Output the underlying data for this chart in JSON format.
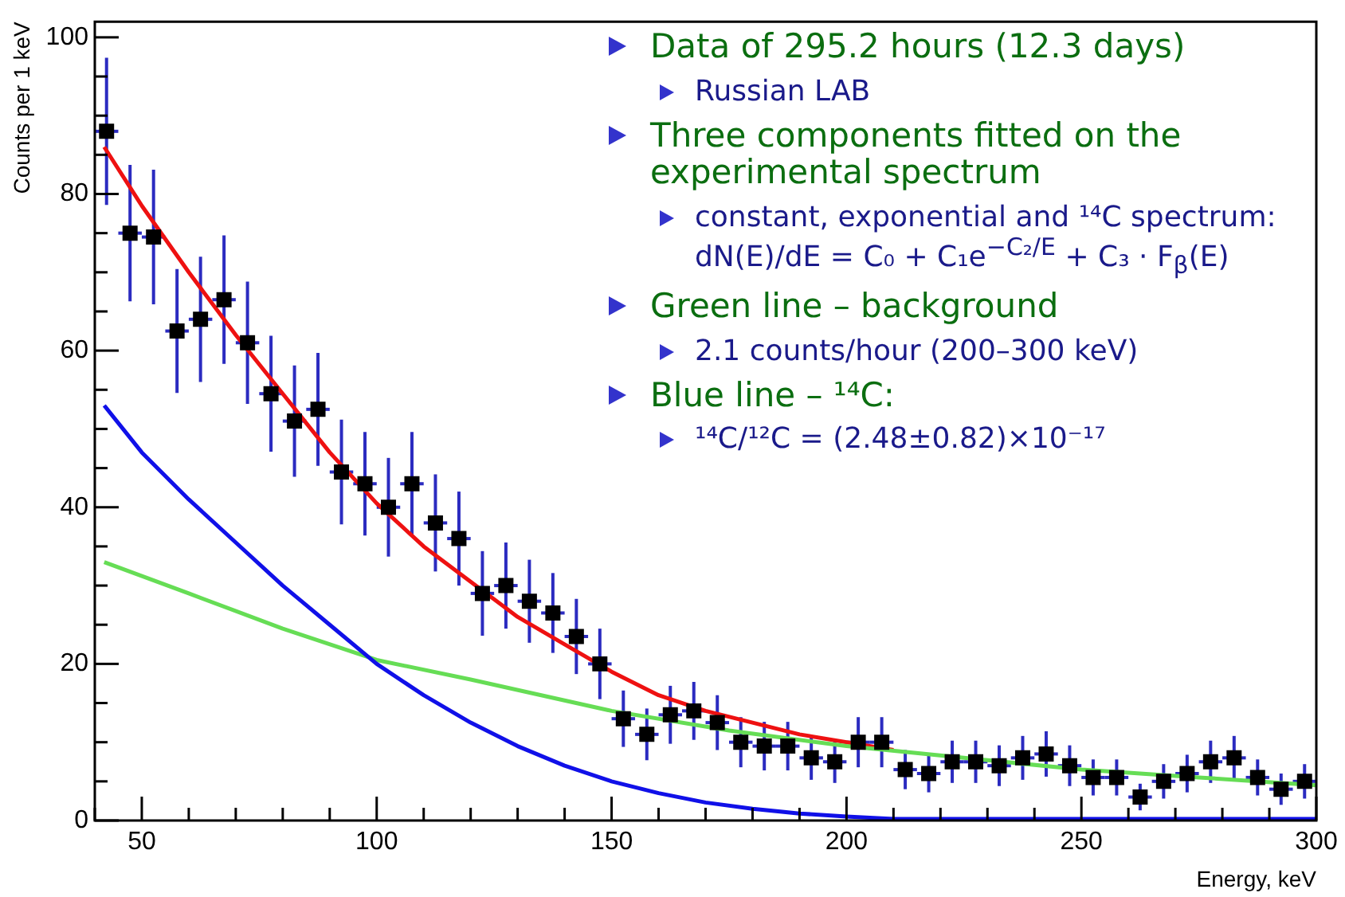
{
  "chart_data": {
    "type": "scatter",
    "xlabel": "Energy, keV",
    "ylabel": "Counts per 1 keV",
    "xlim": [
      40,
      300
    ],
    "ylim": [
      0,
      102
    ],
    "xticks": [
      {
        "value": 40,
        "label": null
      },
      50,
      {
        "value": 60,
        "label": null
      },
      {
        "value": 70,
        "label": null
      },
      {
        "value": 80,
        "label": null
      },
      {
        "value": 90,
        "label": null
      },
      100,
      {
        "value": 110,
        "label": null
      },
      {
        "value": 120,
        "label": null
      },
      {
        "value": 130,
        "label": null
      },
      {
        "value": 140,
        "label": null
      },
      150,
      {
        "value": 160,
        "label": null
      },
      {
        "value": 170,
        "label": null
      },
      {
        "value": 180,
        "label": null
      },
      {
        "value": 190,
        "label": null
      },
      200,
      {
        "value": 210,
        "label": null
      },
      {
        "value": 220,
        "label": null
      },
      {
        "value": 230,
        "label": null
      },
      {
        "value": 240,
        "label": null
      },
      250,
      {
        "value": 260,
        "label": null
      },
      {
        "value": 270,
        "label": null
      },
      {
        "value": 280,
        "label": null
      },
      {
        "value": 290,
        "label": null
      },
      300
    ],
    "yticks": [
      0,
      {
        "value": 5,
        "label": null
      },
      {
        "value": 10,
        "label": null
      },
      {
        "value": 15,
        "label": null
      },
      20,
      {
        "value": 25,
        "label": null
      },
      {
        "value": 30,
        "label": null
      },
      {
        "value": 35,
        "label": null
      },
      40,
      {
        "value": 45,
        "label": null
      },
      {
        "value": 50,
        "label": null
      },
      {
        "value": 55,
        "label": null
      },
      60,
      {
        "value": 65,
        "label": null
      },
      {
        "value": 70,
        "label": null
      },
      {
        "value": 75,
        "label": null
      },
      80,
      {
        "value": 85,
        "label": null
      },
      {
        "value": 90,
        "label": null
      },
      {
        "value": 95,
        "label": null
      },
      100
    ],
    "grid": false,
    "legend": false,
    "series": [
      {
        "type": "line",
        "color": "#1010e8",
        "marker": "none",
        "x": [
          42,
          50,
          60,
          70,
          80,
          90,
          100,
          110,
          120,
          130,
          140,
          150,
          160,
          170,
          180,
          190,
          200,
          210,
          300
        ],
        "values": [
          53,
          47,
          41,
          35.5,
          30,
          25,
          20,
          16,
          12.5,
          9.5,
          7,
          5,
          3.5,
          2.3,
          1.5,
          0.9,
          0.5,
          0.2,
          0.2
        ]
      },
      {
        "type": "line",
        "color": "#66dd55",
        "marker": "none",
        "x": [
          42,
          60,
          80,
          100,
          120,
          150,
          175,
          200,
          225,
          250,
          275,
          300
        ],
        "values": [
          33,
          29,
          24.5,
          20.5,
          18,
          14,
          11.5,
          9.5,
          8,
          6.5,
          5.5,
          4.5
        ]
      },
      {
        "type": "line",
        "color": "#ee1111",
        "marker": "none",
        "x": [
          42,
          50,
          60,
          70,
          80,
          90,
          100,
          110,
          120,
          130,
          140,
          150,
          160,
          170,
          180,
          190,
          200,
          210
        ],
        "values": [
          86,
          78.5,
          70,
          62,
          54.5,
          47,
          40.5,
          35,
          30.5,
          26,
          22.5,
          19,
          16,
          14,
          12.5,
          11,
          10,
          9
        ]
      },
      {
        "type": "scatter",
        "color": "#000000",
        "marker": "square",
        "x": [
          42.5,
          47.5,
          52.5,
          57.5,
          62.5,
          67.5,
          72.5,
          77.5,
          82.5,
          87.5,
          92.5,
          97.5,
          102.5,
          107.5,
          112.5,
          117.5,
          122.5,
          127.5,
          132.5,
          137.5,
          142.5,
          147.5,
          152.5,
          157.5,
          162.5,
          167.5,
          172.5,
          177.5,
          182.5,
          187.5,
          192.5,
          197.5,
          202.5,
          207.5,
          212.5,
          217.5,
          222.5,
          227.5,
          232.5,
          237.5,
          242.5,
          247.5,
          252.5,
          257.5,
          262.5,
          267.5,
          272.5,
          277.5,
          282.5,
          287.5,
          292.5,
          297.5
        ],
        "values": [
          88,
          75,
          74.5,
          62.5,
          64,
          66.5,
          61,
          54.5,
          51,
          52.5,
          44.5,
          43,
          40,
          43,
          38,
          36,
          29,
          30,
          28,
          26.5,
          23.5,
          20,
          13,
          11,
          13.5,
          14,
          12.5,
          10,
          9.5,
          9.5,
          8,
          7.5,
          10,
          10,
          6.5,
          6,
          7.5,
          7.5,
          7,
          8,
          8.5,
          7,
          5.5,
          5.5,
          3,
          5,
          6,
          7.5,
          8,
          5.5,
          4,
          5
        ],
        "errors": [
          9.4,
          8.7,
          8.6,
          7.9,
          8,
          8.2,
          7.8,
          7.4,
          7.1,
          7.2,
          6.7,
          6.6,
          6.3,
          6.6,
          6.2,
          6,
          5.4,
          5.5,
          5.3,
          5.1,
          4.8,
          4.5,
          3.6,
          3.3,
          3.7,
          3.7,
          3.5,
          3.2,
          3.1,
          3.1,
          2.8,
          2.7,
          3.2,
          3.2,
          2.5,
          2.4,
          2.7,
          2.7,
          2.6,
          2.8,
          2.9,
          2.6,
          2.3,
          2.3,
          1.7,
          2.2,
          2.4,
          2.7,
          2.8,
          2.3,
          2,
          2.2
        ],
        "xerrors": [
          2.5,
          2.5,
          2.5,
          2.5,
          2.5,
          2.5,
          2.5,
          2.5,
          2.5,
          2.5,
          2.5,
          2.5,
          2.5,
          2.5,
          2.5,
          2.5,
          2.5,
          2.5,
          2.5,
          2.5,
          2.5,
          2.5,
          2.5,
          2.5,
          2.5,
          2.5,
          2.5,
          2.5,
          2.5,
          2.5,
          2.5,
          2.5,
          2.5,
          2.5,
          2.5,
          2.5,
          2.5,
          2.5,
          2.5,
          2.5,
          2.5,
          2.5,
          2.5,
          2.5,
          2.5,
          2.5,
          2.5,
          2.5,
          2.5,
          2.5,
          2.5,
          2.5
        ]
      }
    ],
    "annotations": [
      "Data of 295.2 hours (12.3 days)",
      "Russian LAB",
      "Three components fitted on the experimental spectrum",
      "constant, exponential and ¹⁴C spectrum: dN(E)/dE = C₀ + C₁e$^{−C₂/E}$ + C₃ · F$_{β}$(E)",
      "Green line – background",
      "2.1 counts/hour (200–300 keV)",
      "Blue line – ¹⁴C:",
      "¹⁴C/¹²C = (2.48±0.82)×10⁻¹⁷"
    ]
  }
}
